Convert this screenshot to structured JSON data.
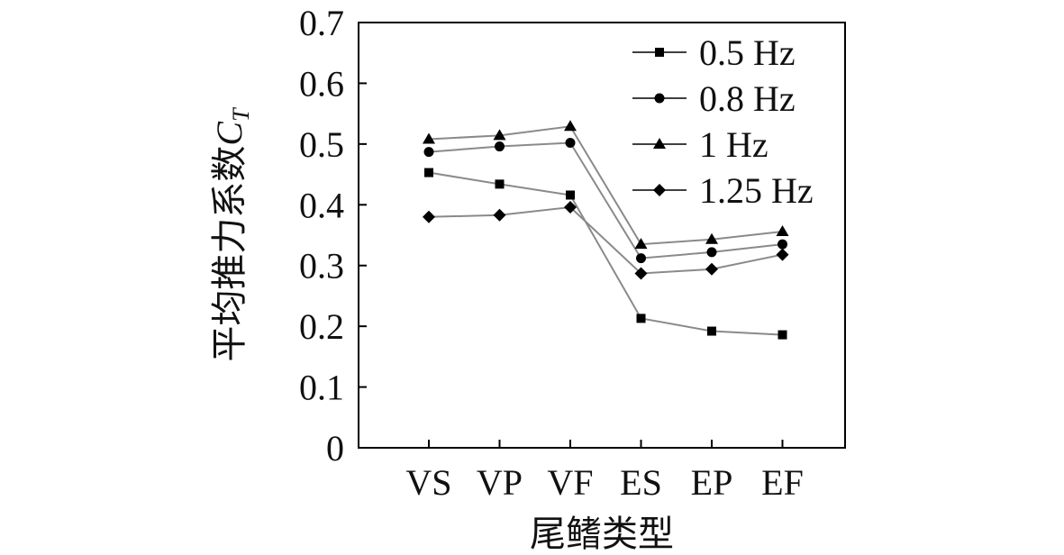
{
  "chart_data": {
    "type": "line",
    "categories": [
      "VS",
      "VP",
      "VF",
      "ES",
      "EP",
      "EF"
    ],
    "xlabel": "尾鳍类型",
    "ylabel": "平均推力系数",
    "ylabel_symbol": "C",
    "ylabel_subscript": "T",
    "ylim": [
      0,
      0.7
    ],
    "yticks": [
      "0",
      "0.1",
      "0.2",
      "0.3",
      "0.4",
      "0.5",
      "0.6",
      "0.7"
    ],
    "grid": false,
    "legend_position": "top-right",
    "series": [
      {
        "name": "0.5 Hz",
        "marker": "square",
        "values": [
          0.453,
          0.434,
          0.416,
          0.213,
          0.192,
          0.186
        ]
      },
      {
        "name": "0.8 Hz",
        "marker": "circle",
        "values": [
          0.487,
          0.496,
          0.502,
          0.312,
          0.322,
          0.335
        ]
      },
      {
        "name": "1 Hz",
        "marker": "triangle",
        "values": [
          0.508,
          0.514,
          0.529,
          0.335,
          0.343,
          0.356
        ]
      },
      {
        "name": "1.25 Hz",
        "marker": "diamond",
        "values": [
          0.38,
          0.383,
          0.396,
          0.287,
          0.294,
          0.318
        ]
      }
    ],
    "colors": {
      "line": "#8a8a8a",
      "marker": "#000000",
      "axis": "#000000"
    }
  }
}
